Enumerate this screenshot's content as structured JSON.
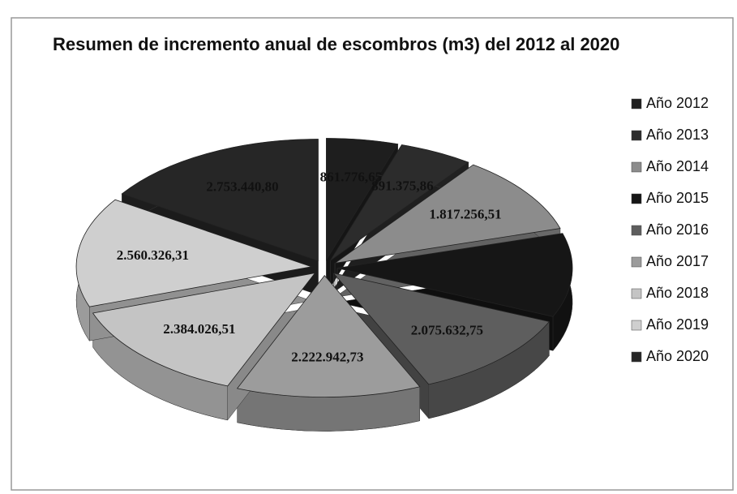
{
  "chart_data": {
    "type": "pie3d",
    "title": "Resumen de incremento anual de escombros  (m3) del  2012 al 2020",
    "categories": [
      "Año 2012",
      "Año 2013",
      "Año 2014",
      "Año 2015",
      "Año 2016",
      "Año 2017",
      "Año 2018",
      "Año 2019",
      "Año 2020"
    ],
    "values": [
      861776.65,
      891375.86,
      1817256.51,
      1950000,
      2075632.75,
      2222942.73,
      2384026.51,
      2560326.31,
      2753440.8
    ],
    "value_labels": [
      "861.776,65",
      "891.375,86",
      "1.817.256,51",
      null,
      "2.075.632,75",
      "2.222.942,73",
      "2.384.026,51",
      "2.560.326,31",
      "2.753.440,80"
    ],
    "colors": [
      "#1e1e1e",
      "#2c2c2c",
      "#8c8c8c",
      "#161616",
      "#5e5e5e",
      "#9c9c9c",
      "#c4c4c4",
      "#cfcfcf",
      "#262626"
    ],
    "legend": "right"
  }
}
